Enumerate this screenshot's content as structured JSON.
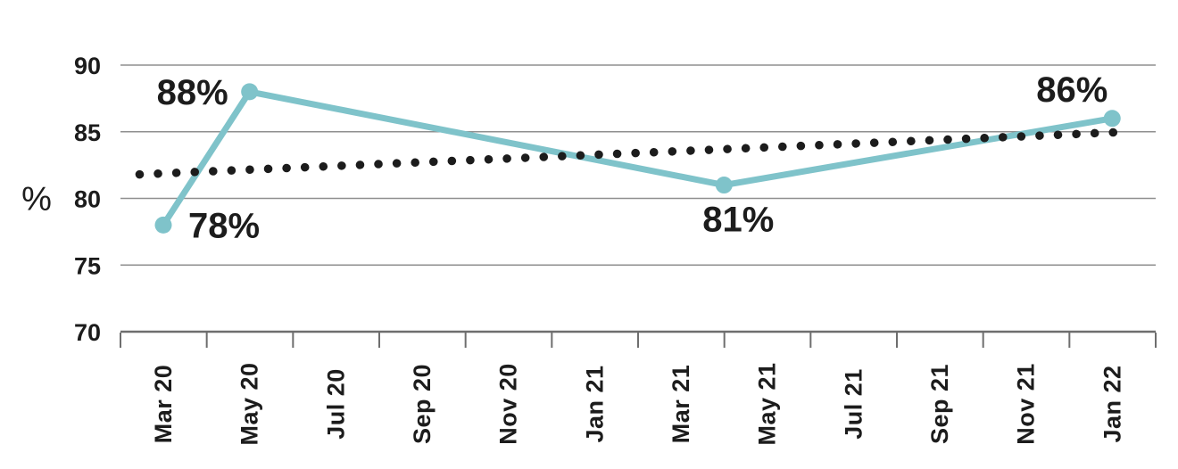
{
  "chart_data": {
    "type": "line",
    "title": "",
    "xlabel": "",
    "ylabel": "%",
    "ylim": [
      70,
      91.5
    ],
    "y_ticks": [
      90,
      85,
      80,
      75,
      70
    ],
    "x_tick_labels": [
      "Mar 20",
      "May 20",
      "Jul 20",
      "Sep 20",
      "Nov 20",
      "Jan 21",
      "Mar 21",
      "May 21",
      "Jul 21",
      "Sep 21",
      "Nov 21",
      "Jan 22"
    ],
    "x_axis_style": "13 evenly spaced tick marks below axis; month labels rotated 90deg, centered between ticks",
    "grid": "horizontal gridlines at 75, 80, 85, 90; bottom axis line at 70",
    "legend": "none",
    "series": [
      {
        "name": "measured-line",
        "style": "solid",
        "color": "#7fc3ca",
        "points": [
          {
            "month_offset": 0,
            "near_label": "Mar 20",
            "value": 78,
            "data_label": "78%",
            "label_placement": "right"
          },
          {
            "month_offset": 2,
            "near_label": "May 20",
            "value": 88,
            "data_label": "88%",
            "label_placement": "left"
          },
          {
            "month_offset": 13,
            "near_label": "Apr 21",
            "value": 81,
            "data_label": "81%",
            "label_placement": "below"
          },
          {
            "month_offset": 22,
            "near_label": "Jan 22",
            "value": 86,
            "data_label": "86%",
            "label_placement": "above-left"
          }
        ]
      },
      {
        "name": "trend-dotted-line",
        "style": "dotted",
        "color": "#1c1c1c",
        "points": [
          {
            "month_offset": -0.55,
            "value": 81.8
          },
          {
            "month_offset": 22.4,
            "value": 85.0
          }
        ]
      }
    ],
    "colors": {
      "accent_teal": "#7fc3ca",
      "text_dark": "#1c1c1c",
      "gridline": "#8f8f8f",
      "axis": "#6e6e6e"
    }
  }
}
